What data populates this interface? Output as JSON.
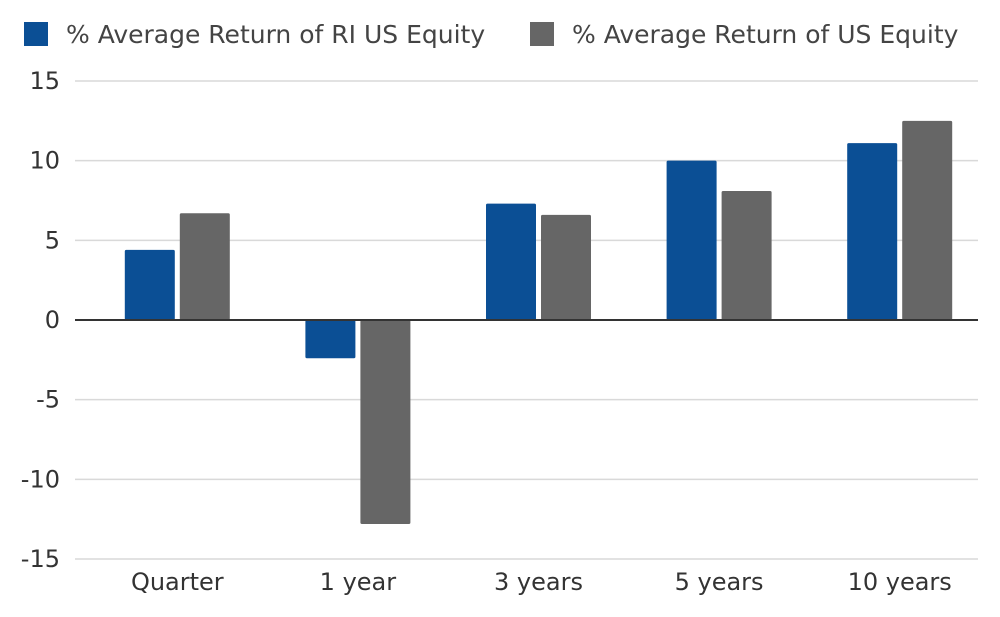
{
  "chart_data": {
    "type": "bar",
    "categories": [
      "Quarter",
      "1 year",
      "3 years",
      "5 years",
      "10 years"
    ],
    "series": [
      {
        "name": "% Average Return of RI US Equity",
        "color": "#0b4f95",
        "values": [
          4.4,
          -2.4,
          7.3,
          10.0,
          11.1
        ]
      },
      {
        "name": "% Average Return of US Equity",
        "color": "#666666",
        "values": [
          6.7,
          -12.8,
          6.6,
          8.1,
          12.5
        ]
      }
    ],
    "ylim": [
      -15,
      15
    ],
    "yticks": [
      15,
      10,
      5,
      0,
      -5,
      -10,
      -15
    ],
    "grid": true,
    "legend": "top-left"
  }
}
